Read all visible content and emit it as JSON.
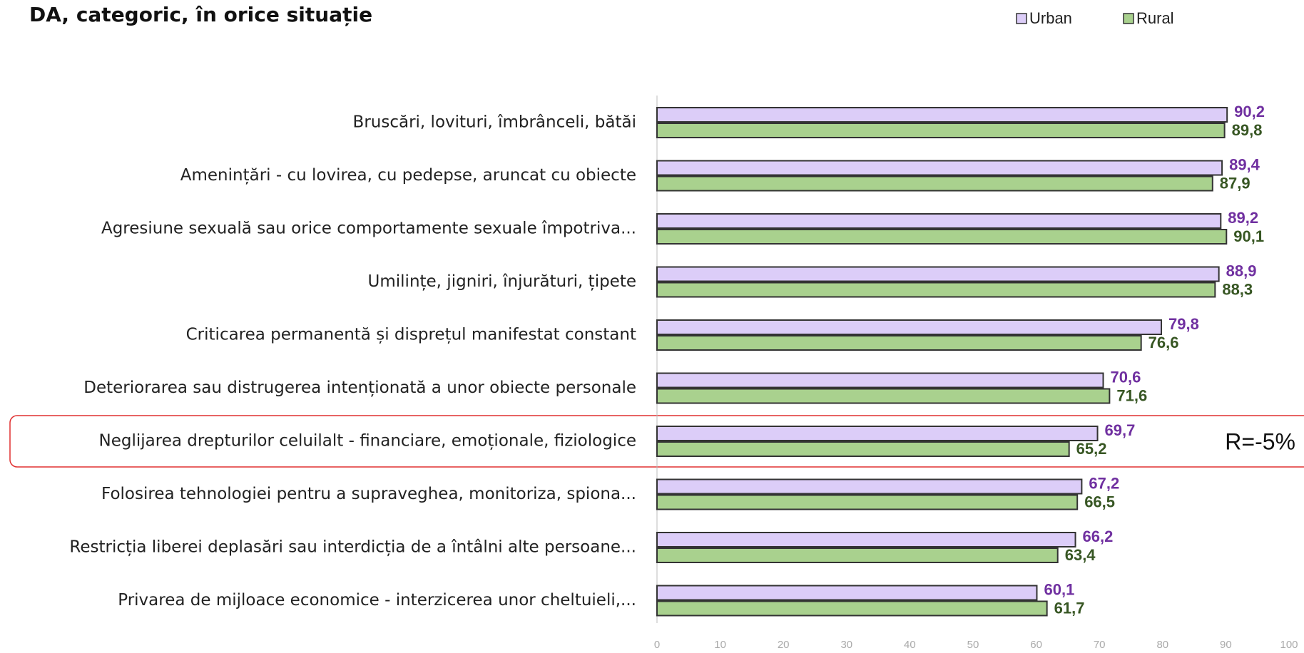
{
  "chart_data": {
    "type": "hbar",
    "title": "DA, categoric, în orice situație",
    "annotation": "R=-5%",
    "categories": [
      "Bruscări, lovituri, îmbrânceli, bătăi",
      "Amenințări - cu lovirea, cu pedepse, aruncat cu obiecte",
      "Agresiune sexuală sau orice comportamente sexuale împotriva...",
      "Umilințe, jigniri, înjurături, țipete",
      "Criticarea permanentă și disprețul manifestat constant",
      "Deteriorarea sau distrugerea intenționată a unor obiecte personale",
      "Neglijarea drepturilor celuilalt - financiare, emoționale, fiziologice",
      "Folosirea tehnologiei pentru a supraveghea, monitoriza, spiona...",
      "Restricția liberei deplasări sau interdicția de a întâlni alte persoane...",
      "Privarea de mijloace economice - interzicerea unor cheltuieli,..."
    ],
    "series": [
      {
        "name": "Urban",
        "color": "#dccdf8",
        "label_color": "#7030a0",
        "values": [
          90.2,
          89.4,
          89.2,
          88.9,
          79.8,
          70.6,
          69.7,
          67.2,
          66.2,
          60.1
        ],
        "value_labels": [
          "90,2",
          "89,4",
          "89,2",
          "88,9",
          "79,8",
          "70,6",
          "69,7",
          "67,2",
          "66,2",
          "60,1"
        ]
      },
      {
        "name": "Rural",
        "color": "#a9d18e",
        "label_color": "#375623",
        "values": [
          89.8,
          87.9,
          90.1,
          88.3,
          76.6,
          71.6,
          65.2,
          66.5,
          63.4,
          61.7
        ],
        "value_labels": [
          "89,8",
          "87,9",
          "90,1",
          "88,3",
          "76,6",
          "71,6",
          "65,2",
          "66,5",
          "63,4",
          "61,7"
        ]
      }
    ],
    "xlim": [
      0,
      100
    ],
    "xticks": [
      0,
      10,
      20,
      30,
      40,
      50,
      60,
      70,
      80,
      90,
      100
    ],
    "legend": "top-right"
  }
}
